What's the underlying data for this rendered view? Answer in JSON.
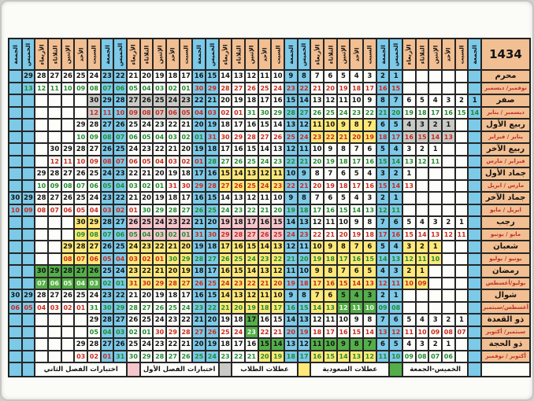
{
  "title": "1434",
  "weekdays_rtl": [
    "الجمعة",
    "السبت",
    "الأحد",
    "الإثنين",
    "الثلاثاء",
    "الأربعاء",
    "الخميس"
  ],
  "weekend_day_indices": [
    0,
    6
  ],
  "columns": 36,
  "colors": {
    "weekend_blue": "#7cc9e8",
    "header_peach": "#f2bf92",
    "student_holiday_yellow": "#ffe878",
    "saudi_holiday_green": "#54ae49",
    "exam2_pink": "#f5c6cc",
    "exam1_gray": "#c9c9c6",
    "red_month_text": "#cb2a1c",
    "green_month_text": "#1f8c2f"
  },
  "months": [
    {
      "name": "محرم",
      "glabel": "نوفمبر/ ديسمبر",
      "start": 7,
      "days": 29,
      "gstart": 15,
      "m1len": 30,
      "c1": "r",
      "c2": "g",
      "special": {}
    },
    {
      "name": "صفر",
      "glabel": "ديسمبر / يناير",
      "start": 1,
      "days": 30,
      "gstart": 14,
      "m1len": 31,
      "c1": "g",
      "c2": "r",
      "special": {
        "gray": [
          23,
          24,
          25,
          26,
          27,
          30
        ]
      }
    },
    {
      "name": "ربيع الأول",
      "glabel": "يناير / فبراير",
      "start": 3,
      "days": 29,
      "gstart": 13,
      "m1len": 31,
      "c1": "r",
      "c2": "g",
      "special": {
        "gray": [
          1,
          2,
          3,
          4
        ],
        "yellow": [
          7,
          8,
          9,
          10,
          11
        ]
      }
    },
    {
      "name": "ربيع الآخر",
      "glabel": "فبراير / مارس",
      "start": 4,
      "days": 30,
      "gstart": 11,
      "m1len": 28,
      "c1": "g",
      "c2": "r",
      "special": {}
    },
    {
      "name": "جماد الأول",
      "glabel": "مارس / ابريل",
      "start": 6,
      "days": 29,
      "gstart": 13,
      "m1len": 31,
      "c1": "r",
      "c2": "g",
      "special": {
        "yellow": [
          11,
          12,
          13,
          14,
          15
        ]
      }
    },
    {
      "name": "جماد الآخر",
      "glabel": "ابريل / مايو",
      "start": 7,
      "days": 30,
      "gstart": 11,
      "m1len": 30,
      "c1": "g",
      "c2": "r",
      "special": {}
    },
    {
      "name": "رجب",
      "glabel": "مايو / يونيو",
      "start": 2,
      "days": 30,
      "gstart": 11,
      "m1len": 31,
      "c1": "r",
      "c2": "g",
      "special": {
        "pink": [
          15,
          16,
          17,
          18,
          19,
          22,
          23,
          24,
          25,
          26
        ],
        "yellow": [
          29,
          30
        ]
      }
    },
    {
      "name": "شعبان",
      "glabel": "يونيو / يوليو",
      "start": 4,
      "days": 29,
      "gstart": 10,
      "m1len": 30,
      "c1": "g",
      "c2": "r",
      "special": {
        "yellow": [
          1,
          2,
          3,
          6,
          7,
          8,
          9,
          10,
          13,
          14,
          15,
          16,
          17,
          20,
          21,
          22,
          23,
          24,
          27,
          28,
          29
        ]
      }
    },
    {
      "name": "رمضان",
      "glabel": "يوليو/أغسطس",
      "start": 5,
      "days": 30,
      "gstart": 9,
      "m1len": 31,
      "c1": "r",
      "c2": "g",
      "special": {
        "yellow": [
          1,
          2,
          5,
          6,
          7,
          8,
          9,
          12,
          13,
          14,
          15,
          16,
          19,
          20,
          21,
          22,
          23
        ],
        "green": [
          26,
          27,
          28,
          29,
          30
        ]
      }
    },
    {
      "name": "شوال",
      "glabel": "أغسطس/سبتمبر",
      "start": 7,
      "days": 30,
      "gstart": 8,
      "m1len": 31,
      "c1": "g",
      "c2": "r",
      "special": {
        "green": [
          3,
          4,
          5
        ],
        "yellow": [
          6,
          7,
          10,
          11,
          12,
          13,
          14
        ]
      }
    },
    {
      "name": "ذو القعدة",
      "glabel": "سبتمبر/ أكتوبر",
      "start": 2,
      "days": 29,
      "gstart": 7,
      "m1len": 30,
      "c1": "r",
      "c2": "g",
      "special": {
        "green": [
          17
        ]
      }
    },
    {
      "name": "ذو الحجة",
      "glabel": "أكتوبر / نوفمبر",
      "start": 3,
      "days": 29,
      "gstart": 6,
      "m1len": 31,
      "c1": "g",
      "c2": "r",
      "special": {
        "green": [
          7,
          8,
          9,
          10,
          11,
          14,
          15
        ]
      },
      "g_special": {
        "yellow": [
          7,
          8,
          9,
          10,
          11,
          14,
          15
        ]
      }
    }
  ],
  "legend": [
    {
      "kind": "space",
      "span": 1
    },
    {
      "kind": "swatch",
      "color": "blue",
      "span": 1
    },
    {
      "kind": "label",
      "text": "الخميس-الجمعة",
      "span": 5
    },
    {
      "kind": "swatch",
      "color": "green",
      "span": 1
    },
    {
      "kind": "label",
      "text": "عطلات السعودية",
      "span": 6
    },
    {
      "kind": "swatch",
      "color": "yellow",
      "span": 1
    },
    {
      "kind": "label",
      "text": "عطلات الطلاب",
      "span": 5
    },
    {
      "kind": "swatch",
      "color": "gray",
      "span": 1
    },
    {
      "kind": "label",
      "text": "اختبارات الفصل الأول",
      "span": 6
    },
    {
      "kind": "swatch",
      "color": "pink",
      "span": 1
    },
    {
      "kind": "label",
      "text": "اختبارات الفصل الثاني",
      "span": 7
    },
    {
      "kind": "swatch",
      "color": "blue",
      "span": 1
    },
    {
      "kind": "swatch",
      "color": "blue",
      "span": 1
    }
  ]
}
